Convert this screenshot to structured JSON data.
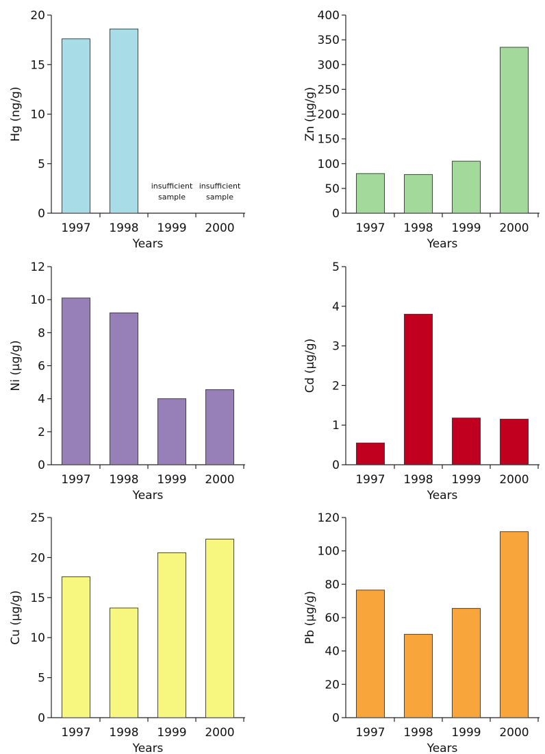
{
  "chart_data": [
    {
      "type": "bar",
      "categories": [
        "1997",
        "1998",
        "1999",
        "2000"
      ],
      "values": [
        17.6,
        18.6,
        null,
        null
      ],
      "value_notes": [
        "",
        "",
        "insufficient sample",
        "insufficient sample"
      ],
      "xlabel": "Years",
      "ylabel": "Hg (ng/g)",
      "ylim": [
        0,
        20
      ],
      "yticks": [
        0,
        5,
        10,
        15,
        20
      ],
      "bar_color": "#a8dde8",
      "grid": false
    },
    {
      "type": "bar",
      "categories": [
        "1997",
        "1998",
        "1999",
        "2000"
      ],
      "values": [
        80,
        78,
        105,
        335
      ],
      "xlabel": "Years",
      "ylabel": "Zn (µg/g)",
      "ylim": [
        0,
        400
      ],
      "yticks": [
        0,
        50,
        100,
        150,
        200,
        250,
        300,
        350,
        400
      ],
      "bar_color": "#a3d99b",
      "grid": false
    },
    {
      "type": "bar",
      "categories": [
        "1997",
        "1998",
        "1999",
        "2000"
      ],
      "values": [
        10.1,
        9.2,
        4.0,
        4.55
      ],
      "xlabel": "Years",
      "ylabel": "Ni (µg/g)",
      "ylim": [
        0,
        12
      ],
      "yticks": [
        0,
        2,
        4,
        6,
        8,
        10,
        12
      ],
      "bar_color": "#9780b8",
      "grid": false
    },
    {
      "type": "bar",
      "categories": [
        "1997",
        "1998",
        "1999",
        "2000"
      ],
      "values": [
        0.55,
        3.8,
        1.18,
        1.15
      ],
      "xlabel": "Years",
      "ylabel": "Cd (µg/g)",
      "ylim": [
        0,
        5
      ],
      "yticks": [
        0,
        1,
        2,
        3,
        4,
        5
      ],
      "bar_color": "#c0001e",
      "grid": false
    },
    {
      "type": "bar",
      "categories": [
        "1997",
        "1998",
        "1999",
        "2000"
      ],
      "values": [
        17.6,
        13.7,
        20.6,
        22.3
      ],
      "xlabel": "Years",
      "ylabel": "Cu (µg/g)",
      "ylim": [
        0,
        25
      ],
      "yticks": [
        0,
        5,
        10,
        15,
        20,
        25
      ],
      "bar_color": "#f7f780",
      "grid": false
    },
    {
      "type": "bar",
      "categories": [
        "1997",
        "1998",
        "1999",
        "2000"
      ],
      "values": [
        76.5,
        50,
        65.5,
        111.5
      ],
      "xlabel": "Years",
      "ylabel": "Pb (µg/g)",
      "ylim": [
        0,
        120
      ],
      "yticks": [
        0,
        20,
        40,
        60,
        80,
        100,
        120
      ],
      "bar_color": "#f8a63c",
      "grid": false
    }
  ]
}
